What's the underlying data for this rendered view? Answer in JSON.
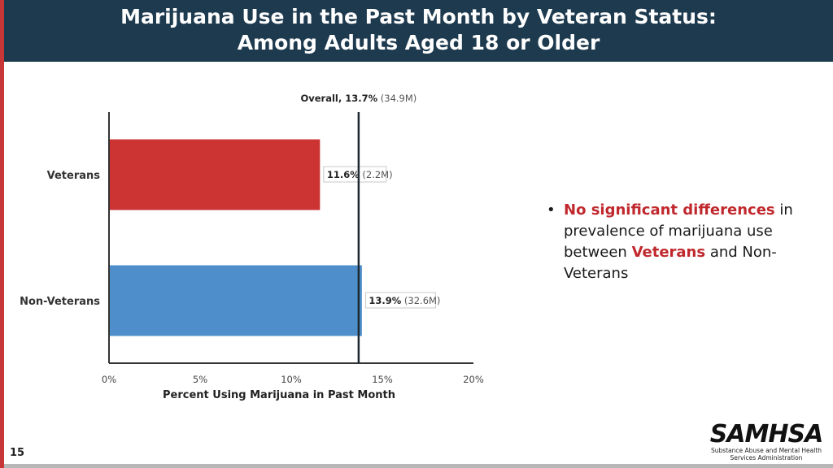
{
  "slide": {
    "title_line1": "Marijuana Use in the Past Month by Veteran Status:",
    "title_line2": "Among Adults Aged 18 or Older",
    "page_number": "15"
  },
  "colors": {
    "header_bg": "#1e3a4f",
    "accent_red": "#c83737",
    "veterans_bar": "#cc3333",
    "nonveterans_bar": "#4e8fcb",
    "highlight_text": "#c0282d"
  },
  "chart_data": {
    "type": "bar",
    "orientation": "horizontal",
    "categories": [
      "Veterans",
      "Non-Veterans"
    ],
    "values": [
      11.6,
      13.9
    ],
    "value_labels_bold": [
      "11.6%",
      "13.9%"
    ],
    "value_labels_extra": [
      "(2.2M)",
      "(32.6M)"
    ],
    "xlabel": "Percent Using Marijuana in Past Month",
    "ylabel": "",
    "xlim": [
      0,
      20
    ],
    "xticks": [
      0,
      5,
      10,
      15,
      20
    ],
    "xtick_labels": [
      "0%",
      "5%",
      "10%",
      "15%",
      "20%"
    ],
    "reference_line": {
      "value": 13.7,
      "label_bold": "Overall, 13.7%",
      "label_extra": "(34.9M)"
    },
    "grid": false
  },
  "bullets": [
    {
      "segments": [
        {
          "text": "No significant differences",
          "highlight": true
        },
        {
          "text": " in prevalence of marijuana use between ",
          "highlight": false
        },
        {
          "text": "Veterans",
          "highlight": true
        },
        {
          "text": " and Non-Veterans",
          "highlight": false
        }
      ]
    }
  ],
  "logo": {
    "name": "SAMHSA",
    "subtitle_line1": "Substance Abuse and Mental Health",
    "subtitle_line2": "Services Administration"
  }
}
